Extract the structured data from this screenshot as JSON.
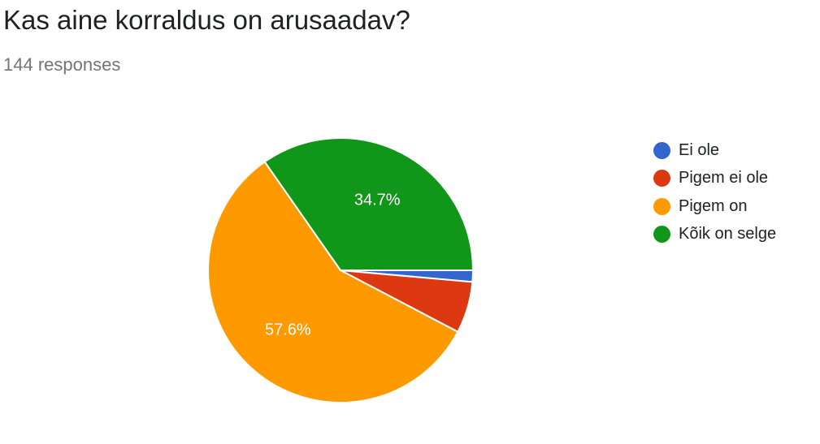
{
  "question": {
    "title": "Kas aine korraldus on arusaadav?",
    "responses": "144 responses"
  },
  "chart_data": {
    "type": "pie",
    "categories": [
      "Ei ole",
      "Pigem ei ole",
      "Pigem on",
      "Kõik on selge"
    ],
    "values": [
      1.4,
      6.3,
      57.6,
      34.7
    ],
    "colors": [
      "#3366cc",
      "#dc3912",
      "#ff9900",
      "#109618"
    ],
    "slice_labels": [
      "",
      "",
      "57.6%",
      "34.7%"
    ],
    "legend_position": "right"
  }
}
